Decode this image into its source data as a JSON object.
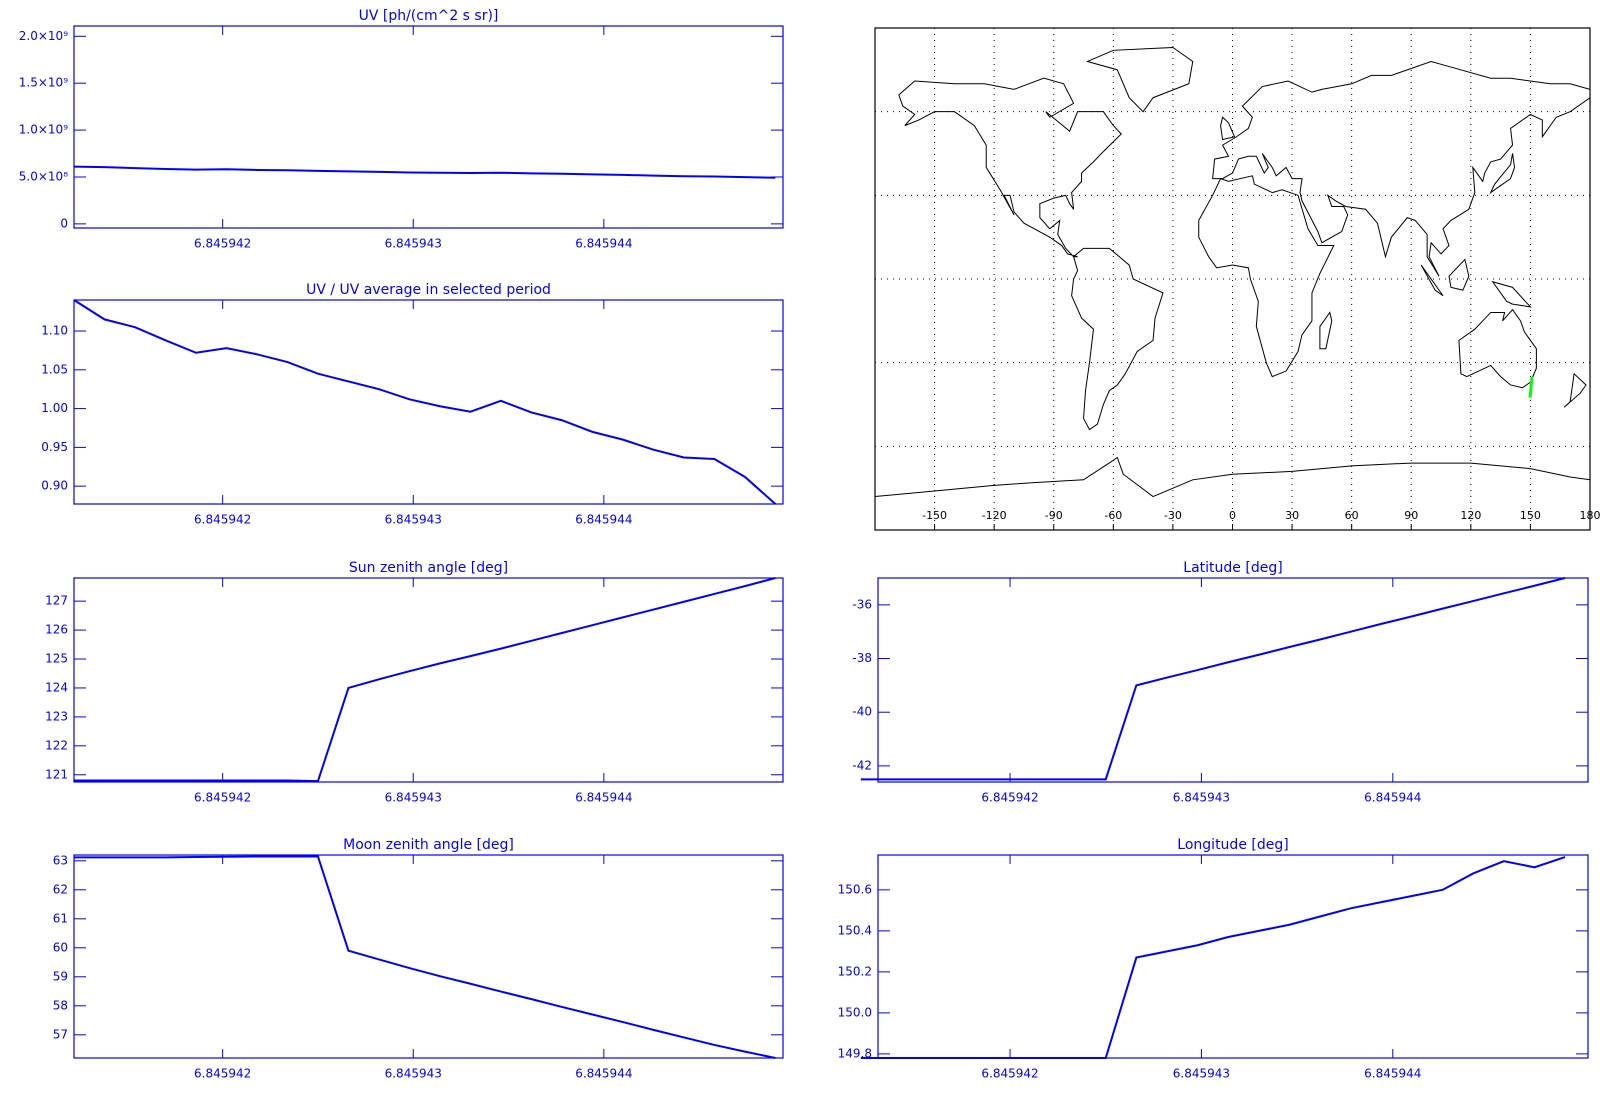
{
  "chart_data": [
    {
      "type": "line",
      "title": "UV [ph/(cm^2 s sr)]",
      "color": "#0000ff",
      "x": [
        6.84594122,
        6.84594138,
        6.84594154,
        6.8459417,
        6.84594186,
        6.84594202,
        6.84594218,
        6.84594234,
        6.8459425,
        6.84594266,
        6.84594282,
        6.84594298,
        6.84594314,
        6.8459433,
        6.84594346,
        6.84594362,
        6.84594378,
        6.84594394,
        6.8459441,
        6.84594426,
        6.84594442,
        6.84594458,
        6.84594474,
        6.8459449
      ],
      "values": [
        610000000,
        605000000,
        595000000,
        585000000,
        578000000,
        582000000,
        575000000,
        572000000,
        565000000,
        560000000,
        555000000,
        548000000,
        545000000,
        543000000,
        545000000,
        538000000,
        535000000,
        528000000,
        522000000,
        515000000,
        508000000,
        505000000,
        498000000,
        492000000
      ],
      "xlim": [
        6.84594122,
        6.84594494
      ],
      "xticks": [
        6.845942,
        6.845943,
        6.845944
      ],
      "ylim": [
        -44000000,
        2110000000
      ],
      "yticks": [
        0,
        {
          "value": 500000000,
          "label": "5.0×10⁸"
        },
        {
          "value": 1000000000,
          "label": "1.0×10⁹"
        },
        {
          "value": 1500000000,
          "label": "1.5×10⁹"
        },
        {
          "value": 2000000000,
          "label": "2.0×10⁹"
        }
      ]
    },
    {
      "type": "line",
      "title": "UV / UV average in selected period",
      "color": "#0000ff",
      "x": [
        6.84594122,
        6.84594138,
        6.84594154,
        6.8459417,
        6.84594186,
        6.84594202,
        6.84594218,
        6.84594234,
        6.8459425,
        6.84594266,
        6.84594282,
        6.84594298,
        6.84594314,
        6.8459433,
        6.84594346,
        6.84594362,
        6.84594378,
        6.84594394,
        6.8459441,
        6.84594426,
        6.84594442,
        6.84594458,
        6.84594474,
        6.8459449
      ],
      "values": [
        1.14,
        1.115,
        1.105,
        1.088,
        1.072,
        1.078,
        1.07,
        1.06,
        1.045,
        1.035,
        1.025,
        1.012,
        1.003,
        0.996,
        1.01,
        0.995,
        0.985,
        0.97,
        0.96,
        0.947,
        0.937,
        0.935,
        0.912,
        0.877
      ],
      "xlim": [
        6.84594122,
        6.84594494
      ],
      "xticks": [
        6.845942,
        6.845943,
        6.845944
      ],
      "ylim": [
        0.877,
        1.14
      ],
      "yticks": [
        {
          "value": 0.9,
          "label": "0.90"
        },
        0.95,
        {
          "value": 1,
          "label": "1.00"
        },
        1.05,
        {
          "value": 1.1,
          "label": "1.10"
        }
      ]
    },
    {
      "type": "map",
      "color": "#000000",
      "xlim": [
        -180,
        180
      ],
      "xticks": [
        -150,
        -120,
        -90,
        -60,
        -30,
        0,
        30,
        60,
        90,
        120,
        150,
        180
      ],
      "ylim": [
        -90,
        90
      ],
      "yticks": [
        -60,
        -30,
        0,
        30,
        60
      ],
      "grid": true,
      "track": {
        "color": "#00ff00",
        "x": [
          149.8,
          150.3,
          150.8
        ],
        "y": [
          -42.5,
          -39,
          -35
        ]
      }
    },
    {
      "type": "line",
      "title": "Sun zenith angle [deg]",
      "color": "#0000ff",
      "x": [
        6.84594122,
        6.84594138,
        6.84594154,
        6.8459417,
        6.84594186,
        6.84594202,
        6.84594218,
        6.84594234,
        6.8459425,
        6.84594266,
        6.84594282,
        6.84594298,
        6.84594314,
        6.8459433,
        6.84594346,
        6.84594362,
        6.84594378,
        6.84594394,
        6.8459441,
        6.84594426,
        6.84594442,
        6.84594458,
        6.84594474,
        6.8459449
      ],
      "values": [
        120.8,
        120.8,
        120.8,
        120.8,
        120.8,
        120.8,
        120.8,
        120.8,
        120.78,
        124.0,
        124.3,
        124.58,
        124.85,
        125.1,
        125.36,
        125.63,
        125.9,
        126.17,
        126.44,
        126.71,
        126.98,
        127.25,
        127.52,
        127.8
      ],
      "xlim": [
        6.84594122,
        6.84594494
      ],
      "xticks": [
        6.845942,
        6.845943,
        6.845944
      ],
      "ylim": [
        120.75,
        127.8
      ],
      "yticks": [
        121,
        122,
        123,
        124,
        125,
        126,
        127
      ]
    },
    {
      "type": "line",
      "title": "Latitude [deg]",
      "color": "#0000ff",
      "x": [
        6.84594122,
        6.84594138,
        6.84594154,
        6.8459417,
        6.84594186,
        6.84594202,
        6.84594218,
        6.84594234,
        6.8459425,
        6.84594266,
        6.84594282,
        6.84594298,
        6.84594314,
        6.8459433,
        6.84594346,
        6.84594362,
        6.84594378,
        6.84594394,
        6.8459441,
        6.84594426,
        6.84594442,
        6.84594458,
        6.84594474,
        6.8459449
      ],
      "values": [
        -42.5,
        -42.5,
        -42.5,
        -42.5,
        -42.5,
        -42.5,
        -42.5,
        -42.5,
        -42.5,
        -39.0,
        -38.71,
        -38.43,
        -38.14,
        -37.86,
        -37.57,
        -37.29,
        -37.0,
        -36.71,
        -36.43,
        -36.14,
        -35.86,
        -35.57,
        -35.29,
        -35.0
      ],
      "xlim": [
        6.84594131,
        6.84594502
      ],
      "xticks": [
        6.845942,
        6.845943,
        6.845944
      ],
      "ylim": [
        -42.6,
        -35.0
      ],
      "yticks": [
        -42,
        -40,
        -38,
        -36
      ]
    },
    {
      "type": "line",
      "title": "Moon zenith angle [deg]",
      "color": "#0000ff",
      "x": [
        6.84594122,
        6.84594138,
        6.84594154,
        6.8459417,
        6.84594186,
        6.84594202,
        6.84594218,
        6.84594234,
        6.8459425,
        6.84594266,
        6.84594282,
        6.84594298,
        6.84594314,
        6.8459433,
        6.84594346,
        6.84594362,
        6.84594378,
        6.84594394,
        6.8459441,
        6.84594426,
        6.84594442,
        6.84594458,
        6.84594474,
        6.8459449
      ],
      "values": [
        63.12,
        63.12,
        63.12,
        63.12,
        63.13,
        63.14,
        63.15,
        63.15,
        63.15,
        59.9,
        59.6,
        59.3,
        59.02,
        58.76,
        58.49,
        58.23,
        57.96,
        57.7,
        57.44,
        57.17,
        56.91,
        56.65,
        56.42,
        56.2
      ],
      "xlim": [
        6.84594122,
        6.84594494
      ],
      "xticks": [
        6.845942,
        6.845943,
        6.845944
      ],
      "ylim": [
        56.2,
        63.2
      ],
      "yticks": [
        57,
        58,
        59,
        60,
        61,
        62,
        63
      ]
    },
    {
      "type": "line",
      "title": "Longitude [deg]",
      "color": "#0000ff",
      "x": [
        6.84594122,
        6.84594138,
        6.84594154,
        6.8459417,
        6.84594186,
        6.84594202,
        6.84594218,
        6.84594234,
        6.8459425,
        6.84594266,
        6.84594282,
        6.84594298,
        6.84594314,
        6.8459433,
        6.84594346,
        6.84594362,
        6.84594378,
        6.84594394,
        6.8459441,
        6.84594426,
        6.84594442,
        6.84594458,
        6.84594474,
        6.8459449
      ],
      "values": [
        149.78,
        149.78,
        149.78,
        149.78,
        149.78,
        149.78,
        149.78,
        149.78,
        149.78,
        150.27,
        150.3,
        150.33,
        150.37,
        150.4,
        150.43,
        150.47,
        150.51,
        150.54,
        150.57,
        150.6,
        150.68,
        150.74,
        150.71,
        150.76
      ],
      "xlim": [
        6.84594131,
        6.84594502
      ],
      "xticks": [
        6.845942,
        6.845943,
        6.845944
      ],
      "ylim": [
        149.78,
        150.77
      ],
      "yticks": [
        149.8,
        {
          "value": 150,
          "label": "150.0"
        },
        150.2,
        150.4,
        150.6
      ]
    }
  ]
}
